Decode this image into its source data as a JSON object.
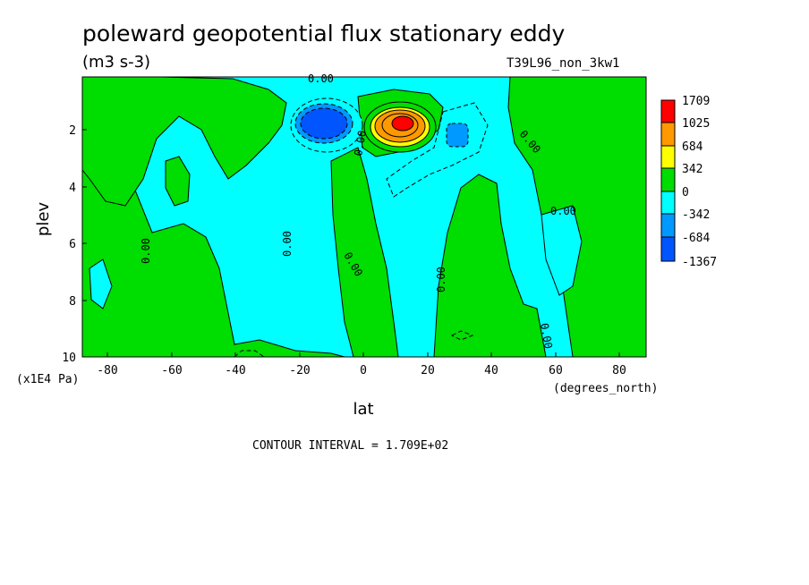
{
  "chart_data": {
    "type": "contour",
    "title": "poleward geopotential flux stationary eddy",
    "units": "(m3 s-3)",
    "run_label": "T39L96_non_3kw1",
    "xlabel": "lat",
    "x_units": "(degrees_north)",
    "ylabel": "plev",
    "y_units": "(x1E4 Pa)",
    "x_ticks": [
      "-80",
      "-60",
      "-40",
      "-20",
      "0",
      "20",
      "40",
      "60",
      "80"
    ],
    "y_ticks": [
      "2",
      "4",
      "6",
      "8",
      "10"
    ],
    "xlim": [
      -88,
      88
    ],
    "ylim": [
      10,
      0.3
    ],
    "contour_interval_text": "CONTOUR INTERVAL = 1.709E+02",
    "contour_label": "0.00",
    "legend": {
      "labels": [
        "1709",
        "1025",
        "684",
        "342",
        "0",
        "-342",
        "-684",
        "-1367"
      ],
      "colors": [
        "#ff0000",
        "#ff9900",
        "#ffff00",
        "#00dd00",
        "#00ffff",
        "#0099ff",
        "#0055ff"
      ]
    },
    "colors": {
      "positive": "#00dd00",
      "negative": "#00ffff",
      "strong_positive": "#ff9900",
      "strong_negative": "#0055ff"
    }
  }
}
